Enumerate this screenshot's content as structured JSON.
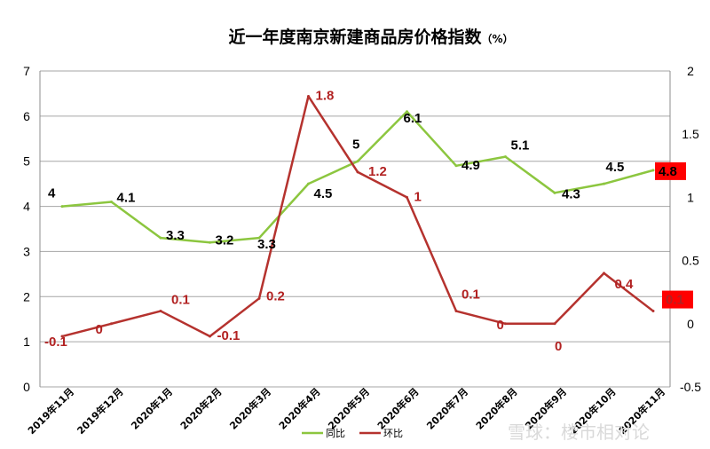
{
  "chart_data": {
    "type": "line",
    "title": "近一年度南京新建商品房价格指数",
    "title_unit": "（%）",
    "categories": [
      "2019年11月",
      "2019年12月",
      "2020年1月",
      "2020年2月",
      "2020年3月",
      "2020年4月",
      "2020年5月",
      "2020年6月",
      "2020年7月",
      "2020年8月",
      "2020年9月",
      "2020年10月",
      "2020年11月"
    ],
    "series": [
      {
        "name": "同比",
        "axis": "left",
        "color": "#8cc63f",
        "values": [
          4,
          4.1,
          3.3,
          3.2,
          3.3,
          4.5,
          5,
          6.1,
          4.9,
          5.1,
          4.3,
          4.5,
          4.8
        ],
        "labels": [
          "4",
          "4.1",
          "3.3",
          "3.2",
          "3.3",
          "4.5",
          "5",
          "6.1",
          "4.9",
          "5.1",
          "4.3",
          "4.5",
          "4.8"
        ]
      },
      {
        "name": "环比",
        "axis": "right",
        "color": "#b5322e",
        "values": [
          -0.1,
          0,
          0.1,
          -0.1,
          0.2,
          1.8,
          1.2,
          1,
          0.1,
          0,
          0,
          0.4,
          0.1
        ],
        "labels": [
          "-0.1",
          "0",
          "0.1",
          "-0.1",
          "0.2",
          "1.8",
          "1.2",
          "1",
          "0.1",
          "0",
          "0",
          "0.4",
          "0.1"
        ]
      }
    ],
    "left_axis": {
      "range": [
        0,
        7
      ],
      "ticks": [
        "0",
        "1",
        "2",
        "3",
        "4",
        "5",
        "6",
        "7"
      ]
    },
    "right_axis": {
      "range": [
        -0.5,
        2
      ],
      "ticks": [
        "-0.5",
        "0",
        "0.5",
        "1",
        "1.5",
        "2"
      ],
      "tick_values": [
        -0.5,
        0,
        0.5,
        1,
        1.5,
        2
      ]
    },
    "grid": true,
    "legend": "bottom",
    "highlight_last_label_color": "#ff0000"
  },
  "watermark": "雪球：楼市相对论"
}
